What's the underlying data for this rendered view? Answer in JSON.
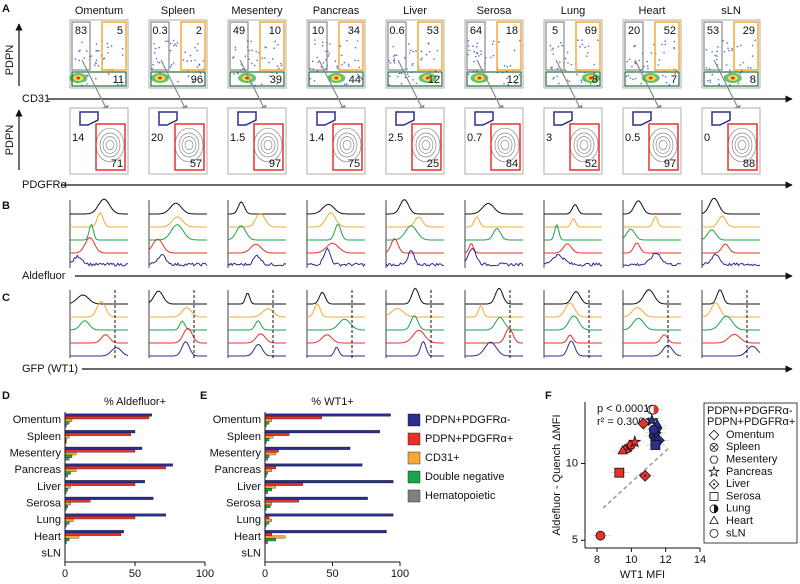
{
  "panel_labels": [
    "A",
    "B",
    "C",
    "D",
    "E",
    "F"
  ],
  "flow": {
    "tissues": [
      "Omentum",
      "Spleen",
      "Mesentery",
      "Pancreas",
      "Liver",
      "Serosa",
      "Lung",
      "Heart",
      "sLN"
    ],
    "top_y_label": "PDPN",
    "top_x_label": "CD31",
    "bottom_y_label": "PDPN",
    "bottom_x_label": "PDGFRα",
    "gray": [
      83,
      0.3,
      49,
      10,
      0.6,
      64,
      5,
      20,
      53
    ],
    "orange": [
      5,
      2,
      10,
      34,
      53,
      18,
      69,
      52,
      29
    ],
    "green": [
      11,
      96,
      39,
      44,
      12,
      12,
      8,
      7,
      8
    ],
    "blue": [
      14,
      20,
      1.5,
      1.4,
      2.5,
      0.7,
      3,
      0.5,
      0
    ],
    "red": [
      71,
      57,
      97,
      75,
      25,
      84,
      52,
      97,
      88
    ]
  },
  "histograms": {
    "aldefluor_label": "Aldefluor",
    "gfp_label": "GFP (WT1)"
  },
  "chart_data": [
    {
      "type": "hbar",
      "title": "% Aldefluor+",
      "categories": [
        "Omentum",
        "Spleen",
        "Mesentery",
        "Pancreas",
        "Liver",
        "Serosa",
        "Lung",
        "Heart",
        "sLN"
      ],
      "series": [
        {
          "color": "#2b2e8f",
          "values": [
            62,
            50,
            55,
            77,
            57,
            63,
            72,
            42,
            0
          ]
        },
        {
          "color": "#e8312a",
          "values": [
            60,
            47,
            50,
            72,
            50,
            18,
            50,
            40,
            0
          ]
        },
        {
          "color": "#f7a833",
          "values": [
            5,
            3,
            8,
            8,
            4,
            4,
            6,
            10,
            0
          ]
        },
        {
          "color": "#1aa34a",
          "values": [
            3,
            1,
            5,
            4,
            2,
            2,
            3,
            3,
            0
          ]
        },
        {
          "color": "#808080",
          "values": [
            1,
            1,
            3,
            2,
            1,
            1,
            1,
            1,
            0
          ]
        }
      ],
      "xlim": [
        0,
        100
      ],
      "xticks": [
        0,
        50,
        100
      ]
    },
    {
      "type": "hbar",
      "title": "% WT1+",
      "categories": [
        "Omentum",
        "Spleen",
        "Mesentery",
        "Pancreas",
        "Liver",
        "Serosa",
        "Lung",
        "Heart",
        "sLN"
      ],
      "series": [
        {
          "name": "PDPN+PDGFRα-",
          "color": "#2b2e8f",
          "values": [
            93,
            85,
            63,
            72,
            95,
            76,
            95,
            90,
            0
          ]
        },
        {
          "name": "PDPN+PDGFRα+",
          "color": "#e8312a",
          "values": [
            42,
            18,
            10,
            8,
            28,
            25,
            3,
            5,
            0
          ]
        },
        {
          "name": "CD31+",
          "color": "#f7a833",
          "values": [
            5,
            6,
            8,
            5,
            8,
            5,
            5,
            15,
            0
          ]
        },
        {
          "name": "Double negative",
          "color": "#1aa34a",
          "values": [
            3,
            3,
            3,
            2,
            5,
            4,
            3,
            8,
            0
          ]
        },
        {
          "name": "Hematopoietic",
          "color": "#808080",
          "values": [
            1,
            1,
            2,
            1,
            2,
            1,
            1,
            2,
            0
          ]
        }
      ],
      "xlim": [
        0,
        100
      ],
      "xticks": [
        0,
        50,
        100
      ],
      "legend": "right"
    },
    {
      "type": "scatter",
      "x_label": "WT1 MFI",
      "y_label": "Aldefluor - Quench ΔMFI",
      "annotations": [
        "p < 0.0001",
        "r² = 0.3004"
      ],
      "series": [
        {
          "name": "PDPN+PDGFRα-",
          "color": "#2b2e8f",
          "x": [
            11.4,
            11.3,
            11.5,
            11.2,
            11.6,
            11.4,
            11.2,
            11.5,
            11.3
          ],
          "y": [
            12.0,
            11.8,
            12.3,
            12.8,
            11.5,
            11.2,
            13.5,
            12.5,
            12.2
          ]
        },
        {
          "name": "PDPN+PDGFRα+",
          "color": "#e8312a",
          "x": [
            10.7,
            9.8,
            10.0,
            10.2,
            10.8,
            9.3,
            11.3,
            9.5,
            8.2
          ],
          "y": [
            12.6,
            11.0,
            11.2,
            11.4,
            9.2,
            9.4,
            13.5,
            10.8,
            5.3
          ]
        }
      ],
      "markers": [
        {
          "label": "Omentum",
          "shape": "diamond"
        },
        {
          "label": "Spleen",
          "shape": "circle-x"
        },
        {
          "label": "Mesentery",
          "shape": "hexagon"
        },
        {
          "label": "Pancreas",
          "shape": "star"
        },
        {
          "label": "Liver",
          "shape": "diamond-dot"
        },
        {
          "label": "Serosa",
          "shape": "square"
        },
        {
          "label": "Lung",
          "shape": "half-circle"
        },
        {
          "label": "Heart",
          "shape": "triangle"
        },
        {
          "label": "sLN",
          "shape": "circle"
        }
      ],
      "xlim": [
        7.3,
        14
      ],
      "xticks": [
        8,
        10,
        12,
        14
      ],
      "ylim": [
        4.5,
        14
      ],
      "yticks": [
        5,
        10
      ]
    }
  ]
}
